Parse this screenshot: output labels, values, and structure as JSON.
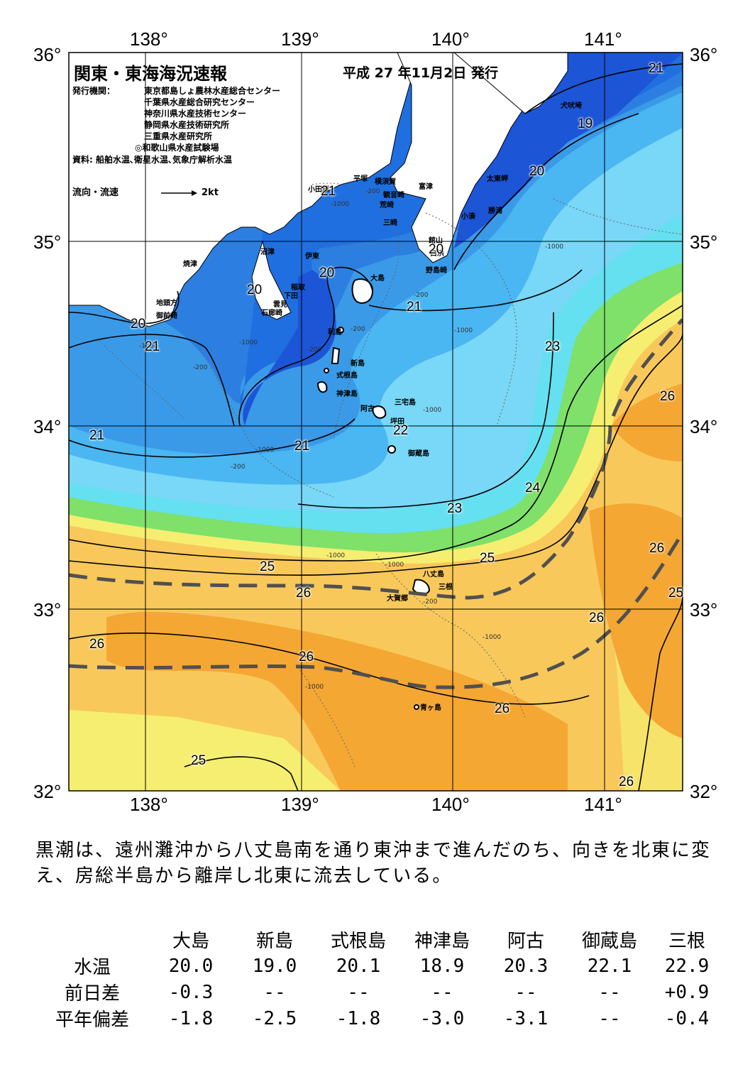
{
  "header": {
    "title": "関東・東海海況速報",
    "date": "平成 27 年11月2日 発行",
    "agency_label": "発行機関：",
    "agencies": [
      "東京都島しょ農林水産総合センター",
      "千葉県水産総合研究センター",
      "神奈川県水産技術センター",
      "静岡県水産技術研究所",
      "三重県水産研究所",
      "◎和歌山県水産試験場"
    ],
    "source": "資料: 船舶水温､衛星水温､気象庁解析水温",
    "flow_legend": "流向・流速",
    "flow_unit": "2kt"
  },
  "axes": {
    "lon_top": [
      "138°",
      "139°",
      "140°",
      "141°"
    ],
    "lon_bottom": [
      "138°",
      "139°",
      "140°",
      "141°"
    ],
    "lat_left": [
      "36°",
      "35°",
      "34°",
      "33°",
      "32°"
    ],
    "lat_right": [
      "36°",
      "35°",
      "34°",
      "33°",
      "32°"
    ]
  },
  "places": [
    "犬吠埼",
    "太東岬",
    "勝浦",
    "小湊",
    "富津",
    "館山",
    "白浜",
    "野島崎",
    "観音崎",
    "荒崎",
    "三崎",
    "横須賀",
    "平塚",
    "小田原",
    "沼津",
    "伊東",
    "稲取",
    "下田",
    "雲見",
    "石廊崎",
    "焼津",
    "地頭方",
    "御前崎",
    "大島",
    "利島",
    "新島",
    "式根島",
    "神津島",
    "三宅島",
    "阿古",
    "坪田",
    "御蔵島",
    "八丈島",
    "三根",
    "大賀郷",
    "青ヶ島"
  ],
  "isotherms": [
    "21",
    "19",
    "20",
    "21",
    "20",
    "20",
    "20",
    "20",
    "20",
    "21",
    "21",
    "23",
    "21",
    "22",
    "21",
    "26",
    "24",
    "23",
    "25",
    "25",
    "26",
    "26",
    "26",
    "26",
    "26",
    "26",
    "25",
    "25",
    "26"
  ],
  "depths": [
    "-200",
    "-1000",
    "-200",
    "-1000",
    "-200",
    "-1000",
    "-200",
    "-1000",
    "-200",
    "-1000",
    "-1000",
    "-1000",
    "-200",
    "-1000",
    "-1000",
    "-1000",
    "-1000",
    "-200"
  ],
  "summary": "黒潮は、遠州灘沖から八丈島南を通り東沖まで進んだのち、向きを北東に変え、房総半島から離岸し北東に流去している。",
  "table": {
    "columns": [
      "大島",
      "新島",
      "式根島",
      "神津島",
      "阿古",
      "御蔵島",
      "三根"
    ],
    "rows": [
      {
        "label": "水温",
        "values": [
          "20.0",
          "19.0",
          "20.1",
          "18.9",
          "20.3",
          "22.1",
          "22.9"
        ]
      },
      {
        "label": "前日差",
        "values": [
          "-0.3",
          "--",
          "--",
          "--",
          "--",
          "--",
          "+0.9"
        ]
      },
      {
        "label": "平年偏差",
        "values": [
          "-1.8",
          "-2.5",
          "-1.8",
          "-3.0",
          "-3.1",
          "--",
          "-0.4"
        ]
      }
    ]
  },
  "colors": {
    "coast_water": "#1f6fe0",
    "deep_blue": "#1c55d6",
    "mid_blue": "#3aa0ee",
    "light_blue": "#79d7f7",
    "cyan": "#65e0f0",
    "green": "#7fe06a",
    "yellow": "#f6ee70",
    "light_orange": "#f8c85a",
    "orange": "#f5a733",
    "kuroshio_axis": "#505050"
  }
}
